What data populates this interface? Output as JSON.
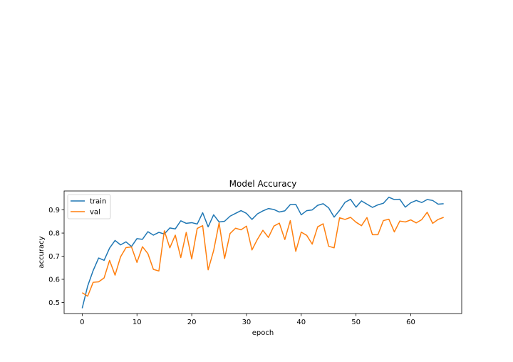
{
  "chart_data": {
    "type": "line",
    "title": "Model Accuracy",
    "xlabel": "epoch",
    "ylabel": "accuracy",
    "xlim": [
      -3.3,
      69.3
    ],
    "ylim": [
      0.452,
      0.982
    ],
    "xticks": [
      0,
      10,
      20,
      30,
      40,
      50,
      60
    ],
    "yticks": [
      0.5,
      0.6,
      0.7,
      0.8,
      0.9
    ],
    "grid": false,
    "legend": "upper left",
    "series": [
      {
        "name": "train",
        "color": "#1f77b4",
        "values": [
          0.475,
          0.571,
          0.638,
          0.692,
          0.682,
          0.735,
          0.768,
          0.749,
          0.762,
          0.742,
          0.776,
          0.773,
          0.806,
          0.791,
          0.803,
          0.796,
          0.822,
          0.818,
          0.853,
          0.842,
          0.845,
          0.839,
          0.888,
          0.827,
          0.879,
          0.848,
          0.851,
          0.873,
          0.885,
          0.897,
          0.885,
          0.859,
          0.883,
          0.896,
          0.906,
          0.902,
          0.891,
          0.896,
          0.923,
          0.924,
          0.879,
          0.897,
          0.9,
          0.92,
          0.927,
          0.909,
          0.869,
          0.898,
          0.933,
          0.946,
          0.912,
          0.939,
          0.925,
          0.911,
          0.922,
          0.929,
          0.955,
          0.945,
          0.946,
          0.912,
          0.931,
          0.941,
          0.932,
          0.945,
          0.941,
          0.925,
          0.927
        ]
      },
      {
        "name": "val",
        "color": "#ff7f0e",
        "values": [
          0.542,
          0.527,
          0.587,
          0.589,
          0.606,
          0.682,
          0.618,
          0.697,
          0.737,
          0.74,
          0.673,
          0.741,
          0.711,
          0.643,
          0.636,
          0.81,
          0.736,
          0.791,
          0.694,
          0.803,
          0.688,
          0.82,
          0.832,
          0.641,
          0.724,
          0.844,
          0.69,
          0.798,
          0.821,
          0.814,
          0.83,
          0.727,
          0.773,
          0.812,
          0.781,
          0.83,
          0.843,
          0.772,
          0.854,
          0.721,
          0.804,
          0.79,
          0.752,
          0.827,
          0.84,
          0.743,
          0.736,
          0.866,
          0.859,
          0.868,
          0.847,
          0.832,
          0.867,
          0.793,
          0.793,
          0.854,
          0.86,
          0.805,
          0.852,
          0.848,
          0.857,
          0.844,
          0.858,
          0.89,
          0.842,
          0.859,
          0.868
        ]
      }
    ]
  }
}
